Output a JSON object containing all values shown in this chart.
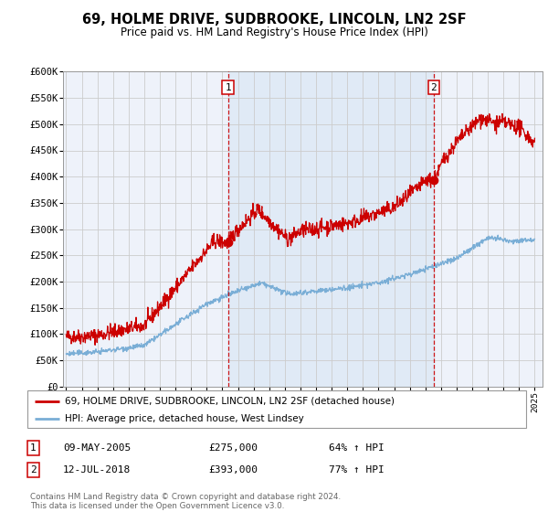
{
  "title": "69, HOLME DRIVE, SUDBROOKE, LINCOLN, LN2 2SF",
  "subtitle": "Price paid vs. HM Land Registry's House Price Index (HPI)",
  "title_fontsize": 10.5,
  "subtitle_fontsize": 8.5,
  "background_color": "#ffffff",
  "plot_bg_color": "#eef2fa",
  "plot_bg_color_right": "#dde8f5",
  "grid_color": "#cccccc",
  "ylim": [
    0,
    600000
  ],
  "yticks": [
    0,
    50000,
    100000,
    150000,
    200000,
    250000,
    300000,
    350000,
    400000,
    450000,
    500000,
    550000,
    600000
  ],
  "xlim_start": 1994.8,
  "xlim_end": 2025.5,
  "red_line_color": "#cc0000",
  "blue_line_color": "#7aaed6",
  "sale1_x": 2005.36,
  "sale1_y": 275000,
  "sale1_label": "1",
  "sale1_date": "09-MAY-2005",
  "sale1_price": "£275,000",
  "sale1_hpi": "64% ↑ HPI",
  "sale2_x": 2018.53,
  "sale2_y": 393000,
  "sale2_label": "2",
  "sale2_date": "12-JUL-2018",
  "sale2_price": "£393,000",
  "sale2_hpi": "77% ↑ HPI",
  "legend_red_label": "69, HOLME DRIVE, SUDBROOKE, LINCOLN, LN2 2SF (detached house)",
  "legend_blue_label": "HPI: Average price, detached house, West Lindsey",
  "footnote": "Contains HM Land Registry data © Crown copyright and database right 2024.\nThis data is licensed under the Open Government Licence v3.0."
}
